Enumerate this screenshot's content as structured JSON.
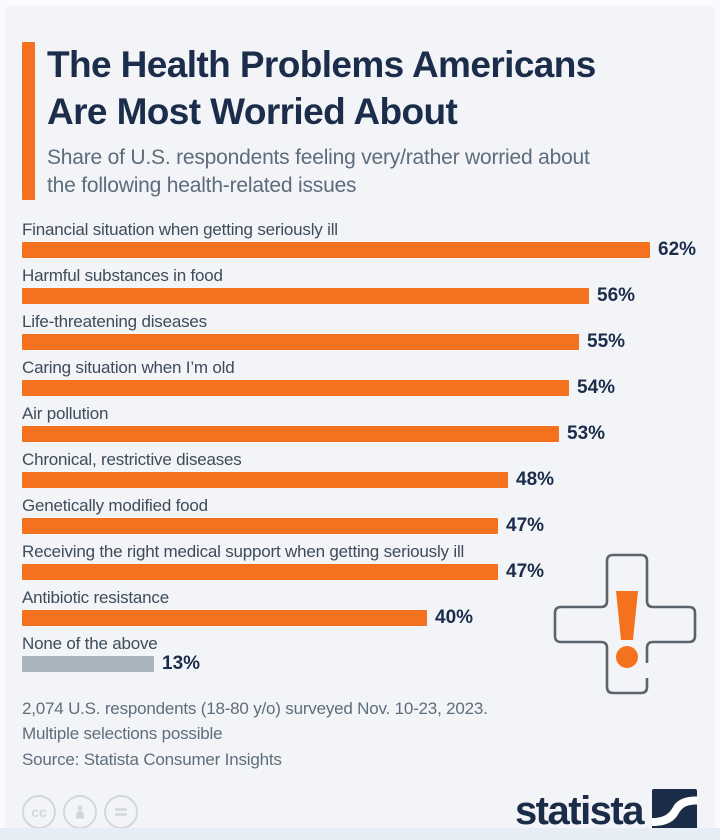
{
  "header": {
    "title_line1": "The Health Problems Americans",
    "title_line2": "Are Most Worried About",
    "subtitle": "Share of U.S. respondents feeling very/rather worried about the following health-related issues"
  },
  "chart_data": {
    "type": "bar",
    "orientation": "horizontal",
    "title": "The Health Problems Americans Are Most Worried About",
    "subtitle": "Share of U.S. respondents feeling very/rather worried about the following health-related issues",
    "unit": "%",
    "xlim": [
      0,
      65
    ],
    "grid": false,
    "legend": false,
    "categories": [
      "Financial situation when getting seriously ill",
      "Harmful substances in food",
      "Life-threatening diseases",
      "Caring situation when I’m old",
      "Air pollution",
      "Chronical, restrictive diseases",
      "Genetically modified food",
      "Receiving the right medical support when getting seriously ill",
      "Antibiotic resistance",
      "None of the above"
    ],
    "values": [
      62,
      56,
      55,
      54,
      53,
      48,
      47,
      47,
      40,
      13
    ],
    "value_labels": [
      "62%",
      "56%",
      "55%",
      "54%",
      "53%",
      "48%",
      "47%",
      "47%",
      "40%",
      "13%"
    ],
    "bar_colors": [
      "#f4711d",
      "#f4711d",
      "#f4711d",
      "#f4711d",
      "#f4711d",
      "#f4711d",
      "#f4711d",
      "#f4711d",
      "#f4711d",
      "#a9b5bd"
    ]
  },
  "footer": {
    "note_line1": "2,074 U.S. respondents (18-80 y/o) surveyed Nov. 10-23, 2023.",
    "note_line2": "Multiple selections possible",
    "source": "Source: Statista Consumer Insights",
    "cc_label": "cc",
    "logo_text": "statista"
  },
  "colors": {
    "accent_orange": "#f4711d",
    "navy": "#1b2d4a",
    "label_gray": "#3e4c5b",
    "subtitle_gray": "#5d6c7c",
    "neutral_bar": "#a9b5bd",
    "background": "#f2f4f7",
    "cross_outline": "#5b646d"
  }
}
